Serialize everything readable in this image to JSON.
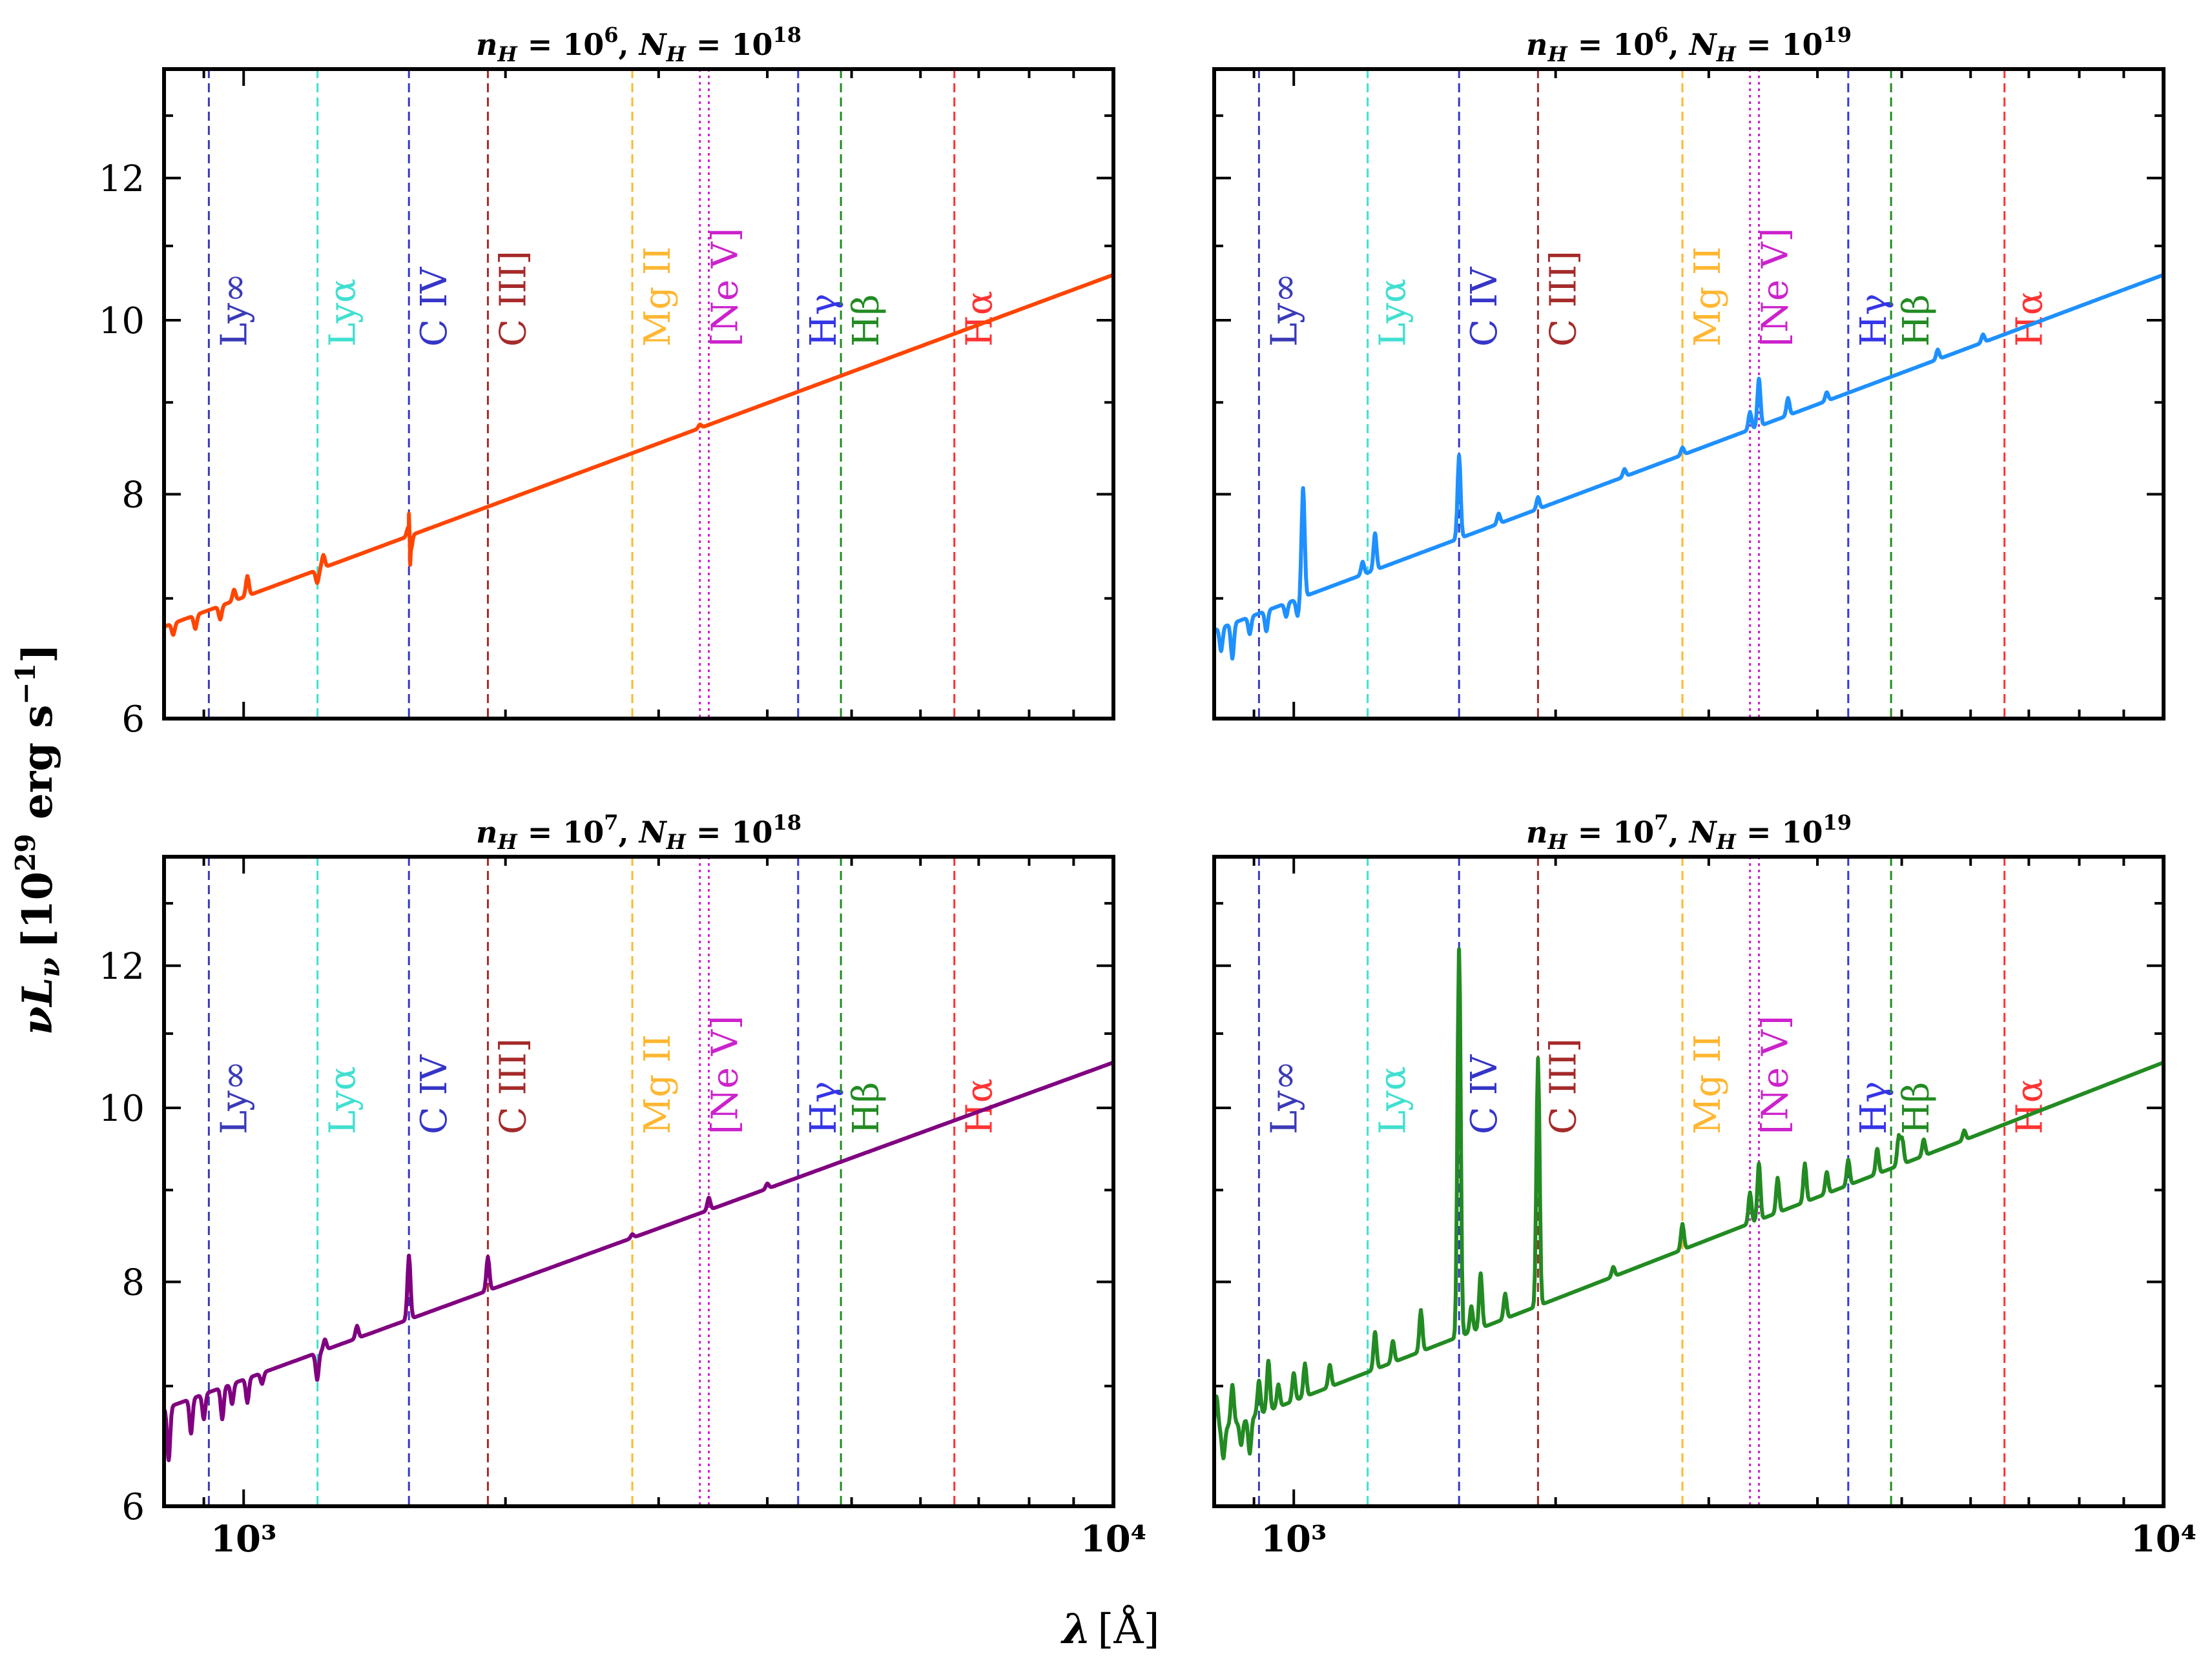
{
  "figure": {
    "xlabel_symbol": "λ",
    "xlabel_unit": "[Å]",
    "ylabel_symbol": "νL",
    "ylabel_sub": "ν",
    "ylabel_unit_pre": "[10",
    "ylabel_unit_exp": "29",
    "ylabel_unit_mid": " erg s",
    "ylabel_unit_exp2": "−1",
    "ylabel_unit_post": "]"
  },
  "chart_data": {
    "type": "line",
    "xscale": "log",
    "yscale": "log",
    "xlim": [
      810,
      10000
    ],
    "ylim": [
      6,
      13.8
    ],
    "x_major_ticks": [
      {
        "value": 1000,
        "label": "10³"
      },
      {
        "value": 10000,
        "label": "10⁴"
      }
    ],
    "y_ticks": [
      {
        "value": 6,
        "label": "6"
      },
      {
        "value": 8,
        "label": "8"
      },
      {
        "value": 10,
        "label": "10"
      },
      {
        "value": 12,
        "label": "12"
      }
    ],
    "reference_lines": [
      {
        "name": "Lyman limit",
        "label": "Ly∞",
        "wavelength": 912,
        "color": "#3a3ab8",
        "style": "dashed"
      },
      {
        "name": "Lyman alpha",
        "label": "Lyα",
        "wavelength": 1216,
        "color": "#40e0d0",
        "style": "dashed"
      },
      {
        "name": "C IV",
        "label": "C IV",
        "wavelength": 1549,
        "color": "#3535c8",
        "style": "dashed"
      },
      {
        "name": "C III]",
        "label": "C III]",
        "wavelength": 1909,
        "color": "#a52a2a",
        "style": "dashed"
      },
      {
        "name": "Mg II",
        "label": "Mg II",
        "wavelength": 2798,
        "color": "#ffb732",
        "style": "dashed"
      },
      {
        "name": "[Ne V] 3346",
        "label": "[Ne V]",
        "wavelength": 3346,
        "color": "#cc22cc",
        "style": "dotted"
      },
      {
        "name": "[Ne V] 3426",
        "label": "",
        "wavelength": 3426,
        "color": "#cc22cc",
        "style": "dotted"
      },
      {
        "name": "H gamma",
        "label": "Hγ",
        "wavelength": 4340,
        "color": "#3535e8",
        "style": "dashed"
      },
      {
        "name": "H beta",
        "label": "Hβ",
        "wavelength": 4861,
        "color": "#228b22",
        "style": "dashed"
      },
      {
        "name": "H alpha",
        "label": "Hα",
        "wavelength": 6563,
        "color": "#ff3333",
        "style": "dashed"
      }
    ],
    "panels": [
      {
        "title_n_exp": "6",
        "title_N_exp": "18",
        "color": "#ff4500",
        "continuum": {
          "y_at_810": 6.75,
          "y_at_10000": 10.6
        },
        "features": [
          [
            830,
            -0.1
          ],
          [
            880,
            -0.12
          ],
          [
            940,
            -0.12
          ],
          [
            975,
            0.1
          ],
          [
            1010,
            0.18
          ],
          [
            1215,
            -0.12
          ],
          [
            1235,
            0.12
          ],
          [
            1549,
            0.22
          ],
          [
            1554,
            -0.28
          ],
          [
            3346,
            0.04
          ]
        ]
      },
      {
        "title_n_exp": "6",
        "title_N_exp": "19",
        "color": "#1e90ff",
        "continuum": {
          "y_at_810": 6.72,
          "y_at_10000": 10.6
        },
        "features": [
          [
            825,
            -0.2
          ],
          [
            850,
            -0.3
          ],
          [
            890,
            -0.15
          ],
          [
            930,
            -0.18
          ],
          [
            980,
            -0.12
          ],
          [
            1010,
            -0.15
          ],
          [
            1025,
            1.05
          ],
          [
            1200,
            0.12
          ],
          [
            1240,
            0.35
          ],
          [
            1549,
            0.85
          ],
          [
            1720,
            0.1
          ],
          [
            1909,
            0.12
          ],
          [
            2400,
            0.08
          ],
          [
            2798,
            0.08
          ],
          [
            3346,
            0.2
          ],
          [
            3426,
            0.55
          ],
          [
            3700,
            0.2
          ],
          [
            4100,
            0.1
          ],
          [
            5500,
            0.12
          ],
          [
            6200,
            0.1
          ]
        ]
      },
      {
        "title_n_exp": "7",
        "title_N_exp": "18",
        "color": "#800080",
        "continuum": {
          "y_at_810": 6.8,
          "y_at_10000": 10.6
        },
        "features": [
          [
            820,
            -0.45
          ],
          [
            870,
            -0.3
          ],
          [
            900,
            -0.22
          ],
          [
            945,
            -0.28
          ],
          [
            970,
            -0.18
          ],
          [
            1010,
            -0.22
          ],
          [
            1050,
            -0.1
          ],
          [
            1215,
            -0.25
          ],
          [
            1240,
            0.1
          ],
          [
            1350,
            0.12
          ],
          [
            1549,
            0.65
          ],
          [
            1909,
            0.35
          ],
          [
            2798,
            0.04
          ],
          [
            3426,
            0.14
          ],
          [
            4000,
            0.06
          ]
        ]
      },
      {
        "title_n_exp": "7",
        "title_N_exp": "19",
        "color": "#228b22",
        "continuum": {
          "y_at_810": 6.6,
          "y_at_10000": 10.6
        },
        "features": [
          [
            815,
            0.3
          ],
          [
            830,
            -0.25
          ],
          [
            850,
            0.35
          ],
          [
            870,
            -0.2
          ],
          [
            890,
            -0.3
          ],
          [
            912,
            0.3
          ],
          [
            935,
            0.45
          ],
          [
            960,
            0.2
          ],
          [
            1000,
            0.25
          ],
          [
            1030,
            0.3
          ],
          [
            1100,
            0.2
          ],
          [
            1240,
            0.35
          ],
          [
            1300,
            0.2
          ],
          [
            1400,
            0.4
          ],
          [
            1549,
            4.8
          ],
          [
            1600,
            0.25
          ],
          [
            1640,
            0.55
          ],
          [
            1750,
            0.25
          ],
          [
            1909,
            2.9
          ],
          [
            2330,
            0.1
          ],
          [
            2798,
            0.28
          ],
          [
            3346,
            0.35
          ],
          [
            3426,
            0.65
          ],
          [
            3600,
            0.4
          ],
          [
            3869,
            0.45
          ],
          [
            4100,
            0.25
          ],
          [
            4340,
            0.3
          ],
          [
            4686,
            0.3
          ],
          [
            4960,
            0.35
          ],
          [
            5007,
            0.3
          ],
          [
            5300,
            0.2
          ],
          [
            5900,
            0.12
          ]
        ]
      }
    ]
  }
}
